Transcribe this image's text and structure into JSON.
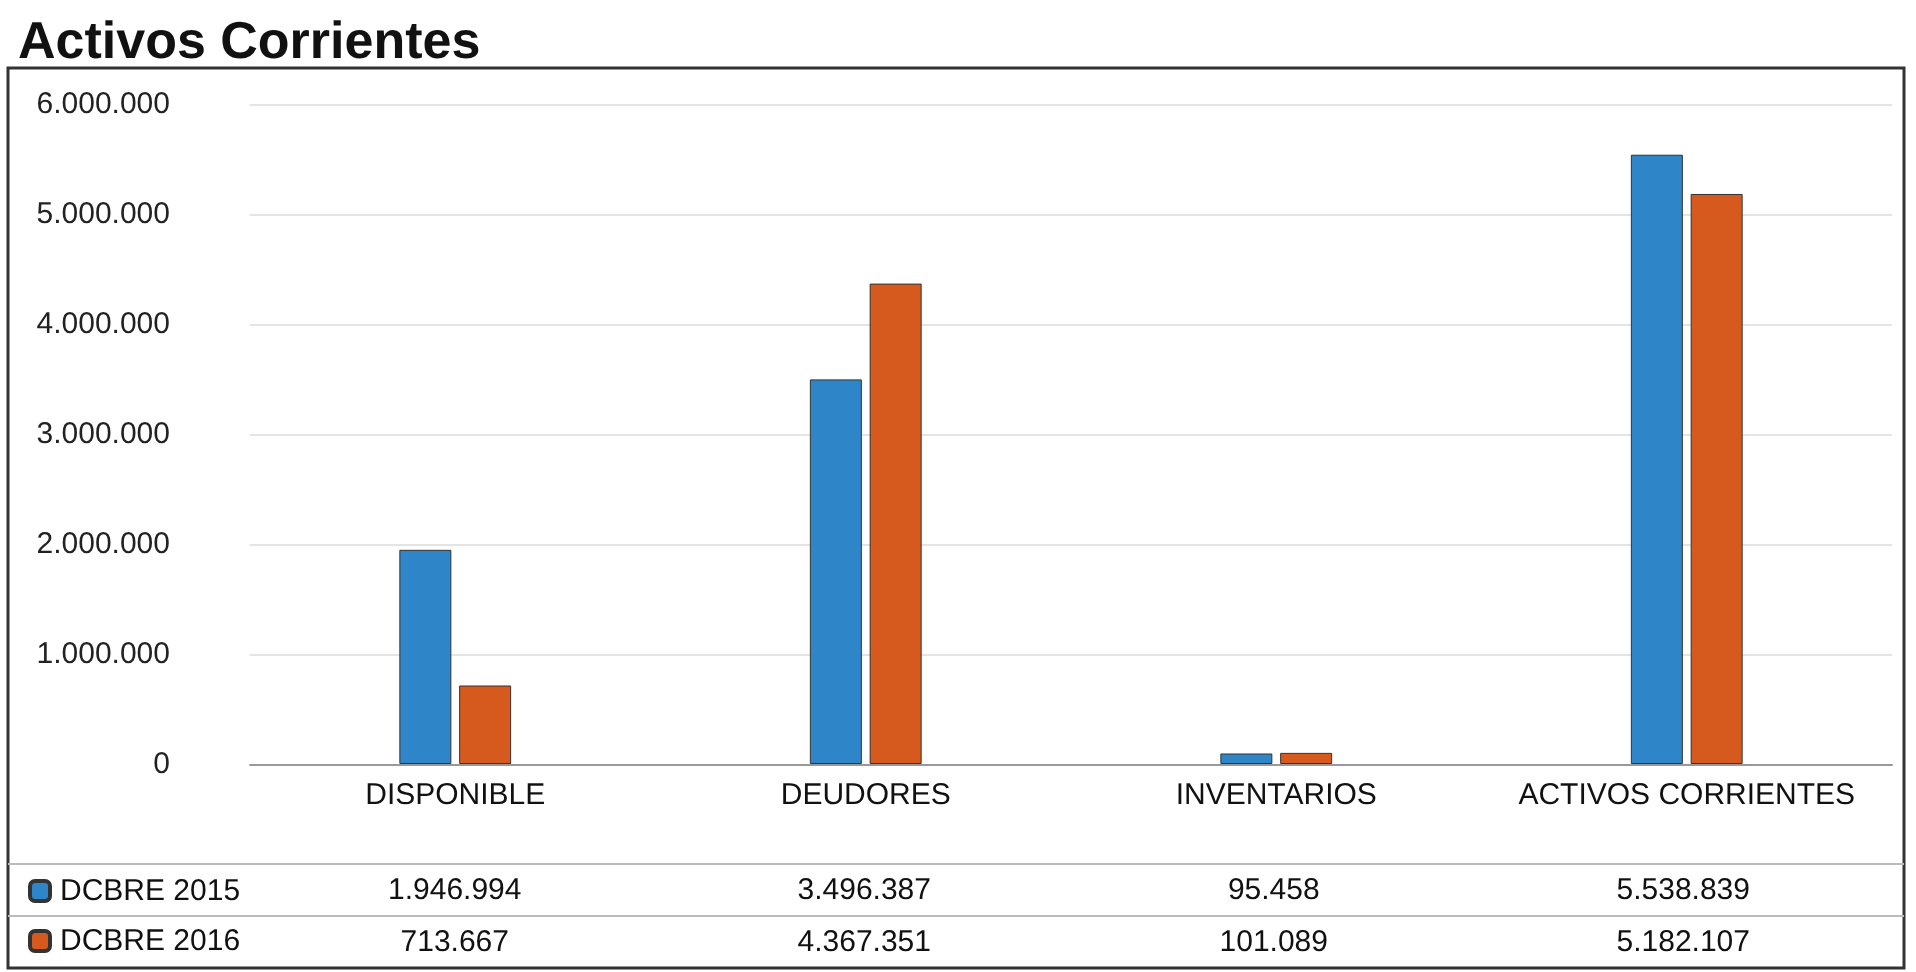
{
  "chart_data": {
    "type": "bar",
    "title": "Activos Corrientes",
    "categories": [
      "DISPONIBLE",
      "DEUDORES",
      "INVENTARIOS",
      "ACTIVOS CORRIENTES"
    ],
    "series": [
      {
        "name": "DCBRE 2015",
        "color": "#2e86c8",
        "values": [
          1946994,
          3496387,
          95458,
          5538839
        ],
        "value_labels": [
          "1.946.994",
          "3.496.387",
          "95.458",
          "5.538.839"
        ]
      },
      {
        "name": "DCBRE 2016",
        "color": "#d65a1e",
        "values": [
          713667,
          4367351,
          101089,
          5182107
        ],
        "value_labels": [
          "713.667",
          "4.367.351",
          "101.089",
          "5.182.107"
        ]
      }
    ],
    "ylim": [
      0,
      6000000
    ],
    "yticks": [
      {
        "value": 0,
        "label": "0"
      },
      {
        "value": 1000000,
        "label": "1.000.000"
      },
      {
        "value": 2000000,
        "label": "2.000.000"
      },
      {
        "value": 3000000,
        "label": "3.000.000"
      },
      {
        "value": 4000000,
        "label": "4.000.000"
      },
      {
        "value": 5000000,
        "label": "5.000.000"
      },
      {
        "value": 6000000,
        "label": "6.000.000"
      }
    ],
    "grid": "y",
    "legend": "bottom left"
  }
}
